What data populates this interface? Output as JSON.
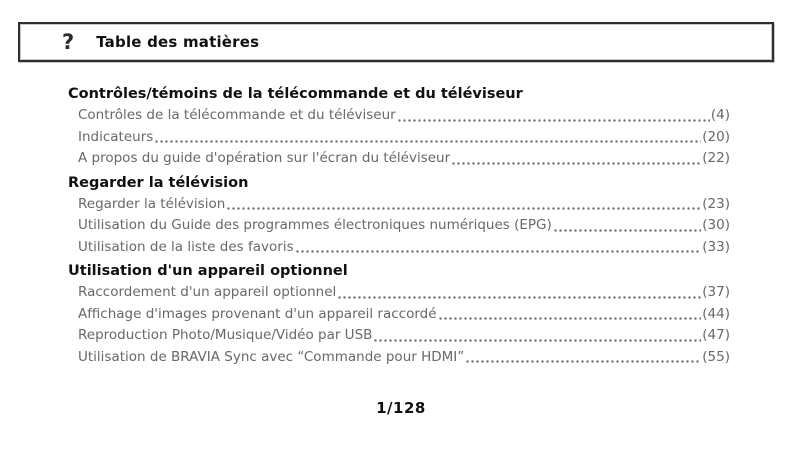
{
  "header": {
    "icon_glyph": "?",
    "title": "Table des matières"
  },
  "toc": {
    "sections": [
      {
        "title": "Contrôles/témoins de la télécommande et du téléviseur",
        "entries": [
          {
            "label": "Contrôles de la télécommande et du téléviseur",
            "page": "(4)"
          },
          {
            "label": "Indicateurs",
            "page": "(20)"
          },
          {
            "label": "A propos du guide d'opération sur l'écran du téléviseur",
            "page": "(22)"
          }
        ]
      },
      {
        "title": "Regarder la télévision",
        "entries": [
          {
            "label": "Regarder la télévision",
            "page": "(23)"
          },
          {
            "label": "Utilisation du Guide des programmes électroniques numériques (EPG)",
            "page": "(30)"
          },
          {
            "label": "Utilisation de la liste des favoris",
            "page": "(33)"
          }
        ]
      },
      {
        "title": "Utilisation d'un appareil optionnel",
        "entries": [
          {
            "label": "Raccordement d'un appareil optionnel",
            "page": "(37)"
          },
          {
            "label": "Affichage d'images provenant d'un appareil raccordé",
            "page": "(44)"
          },
          {
            "label": "Reproduction Photo/Musique/Vidéo par USB",
            "page": "(47)"
          },
          {
            "label": "Utilisation de BRAVIA Sync avec “Commande pour HDMI”",
            "page": "(55)"
          }
        ]
      }
    ]
  },
  "footer": {
    "page_indicator": "1/128"
  },
  "colors": {
    "heading_text": "#111111",
    "entry_text": "#686868",
    "box_border": "#2e2e2e",
    "background": "#ffffff"
  }
}
